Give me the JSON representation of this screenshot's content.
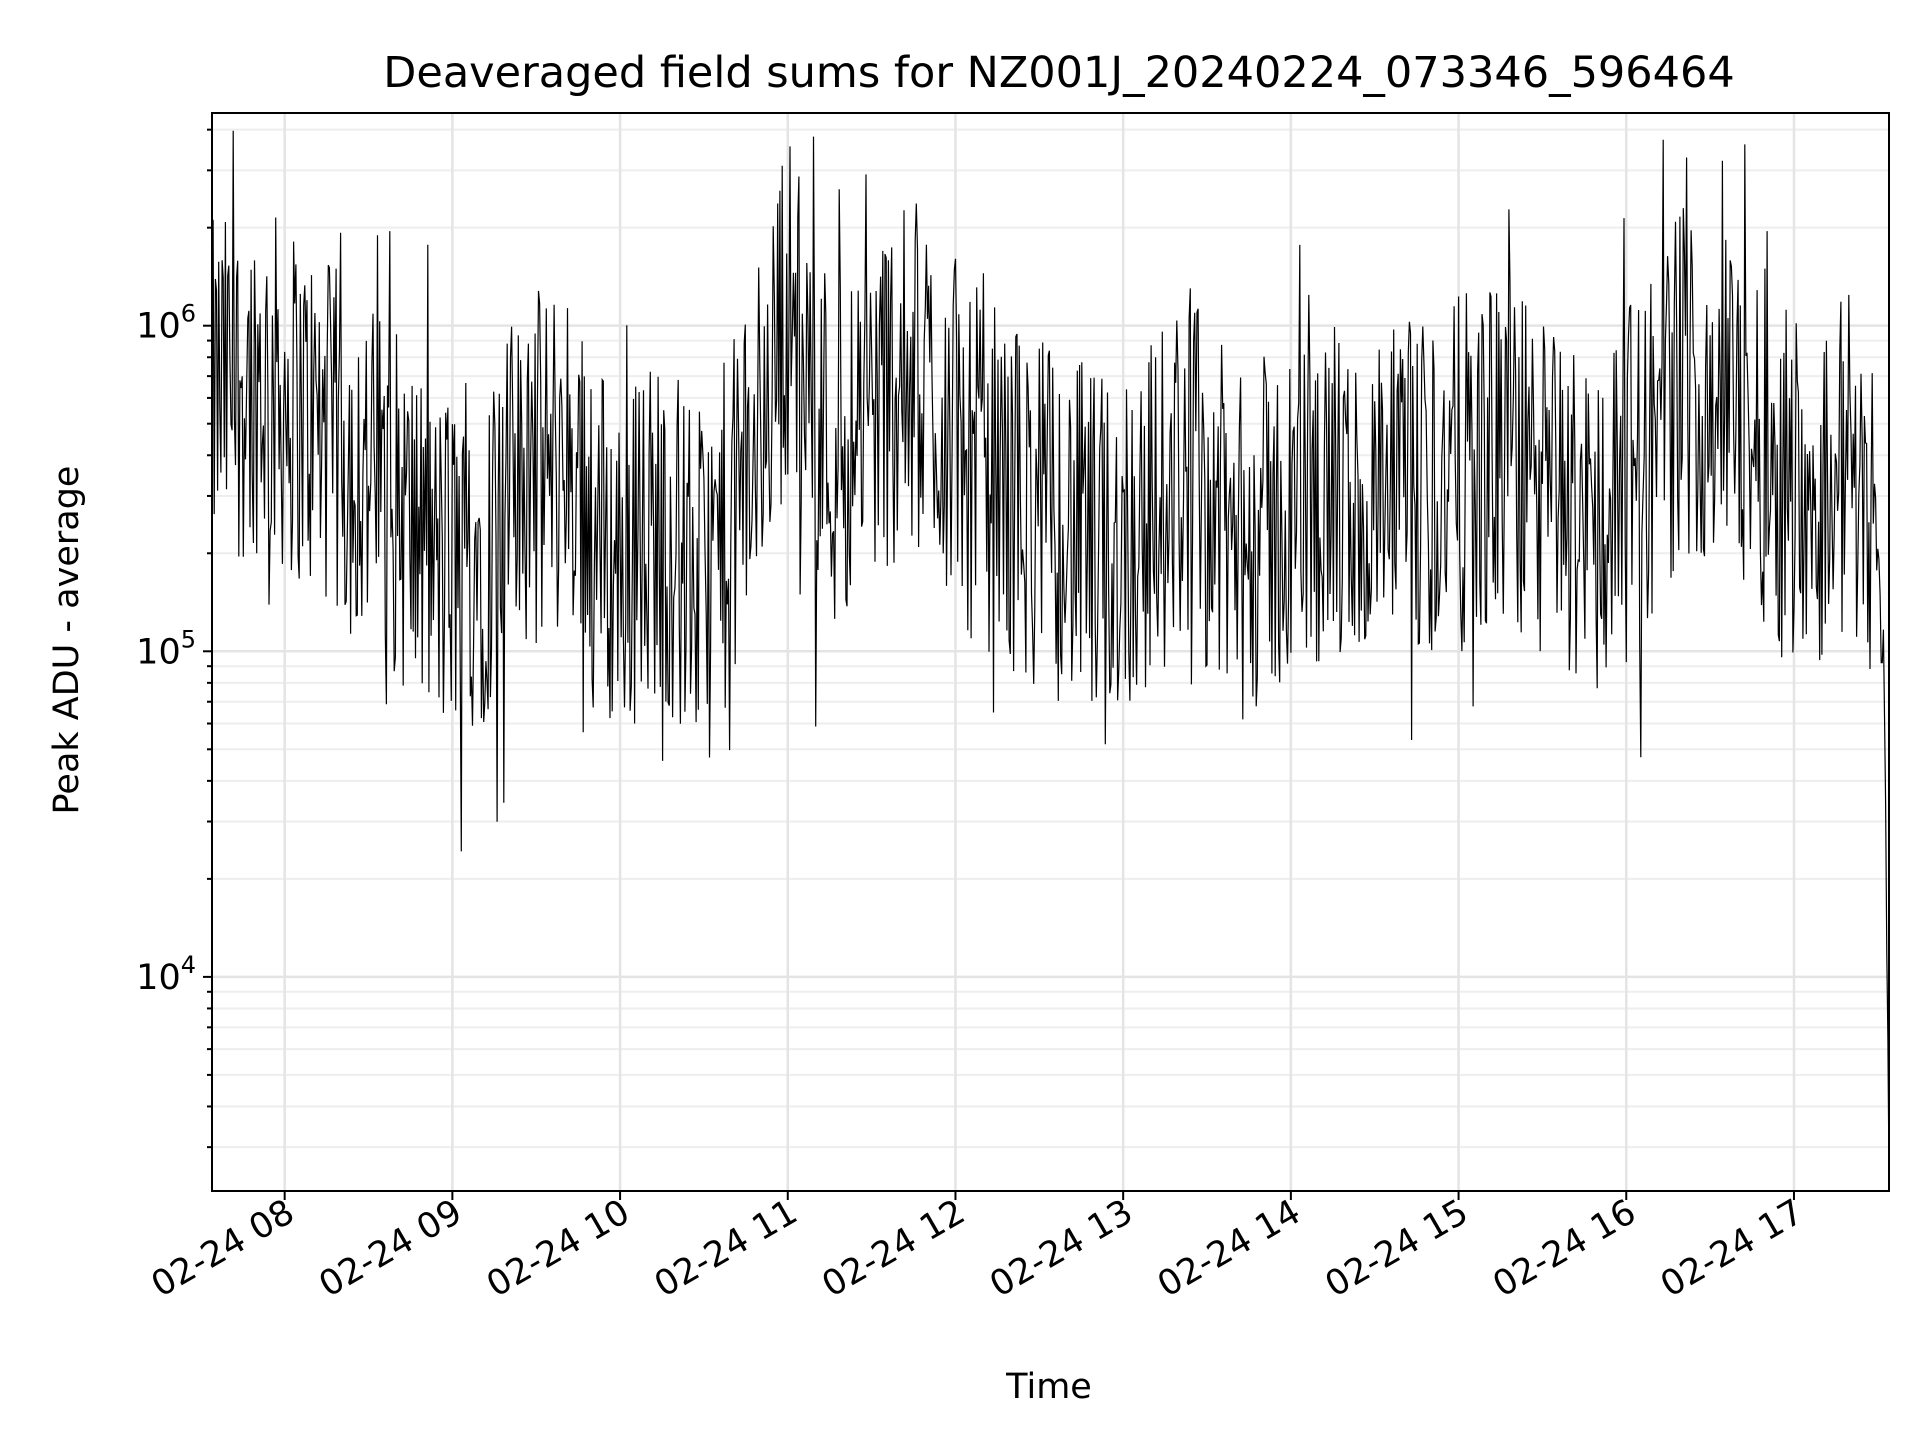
{
  "chart_data": {
    "type": "line",
    "title": "Deaveraged field sums for NZ001J_20240224_073346_596464",
    "xlabel": "Time",
    "ylabel": "Peak ADU - average",
    "yscale": "log",
    "ylim": [
      2200,
      4500000
    ],
    "xlim": [
      "2024-02-24 07:34",
      "2024-02-24 17:34"
    ],
    "grid": "both",
    "line_color": "#000000",
    "x_tick_labels": [
      "02-24 08",
      "02-24 09",
      "02-24 10",
      "02-24 11",
      "02-24 12",
      "02-24 13",
      "02-24 14",
      "02-24 15",
      "02-24 16",
      "02-24 17"
    ],
    "x_ticks": [
      "2024-02-24 08:00",
      "2024-02-24 09:00",
      "2024-02-24 10:00",
      "2024-02-24 11:00",
      "2024-02-24 12:00",
      "2024-02-24 13:00",
      "2024-02-24 14:00",
      "2024-02-24 15:00",
      "2024-02-24 16:00",
      "2024-02-24 17:00"
    ],
    "y_ticks": [
      10000,
      100000,
      1000000
    ],
    "y_tick_labels": [
      {
        "base": "10",
        "exp": "4"
      },
      {
        "base": "10",
        "exp": "5"
      },
      {
        "base": "10",
        "exp": "6"
      }
    ],
    "series": [
      {
        "x": [
          "2024-02-24 07:34",
          "2024-02-24 07:50",
          "2024-02-24 08:06",
          "2024-02-24 08:22",
          "2024-02-24 08:38",
          "2024-02-24 08:54",
          "2024-02-24 09:10",
          "2024-02-24 09:26",
          "2024-02-24 09:42",
          "2024-02-24 09:58",
          "2024-02-24 10:14",
          "2024-02-24 10:30",
          "2024-02-24 10:46",
          "2024-02-24 11:00",
          "2024-02-24 11:16",
          "2024-02-24 11:32",
          "2024-02-24 11:48",
          "2024-02-24 12:04",
          "2024-02-24 12:20",
          "2024-02-24 12:36",
          "2024-02-24 12:52",
          "2024-02-24 13:08",
          "2024-02-24 13:24",
          "2024-02-24 13:40",
          "2024-02-24 13:56",
          "2024-02-24 14:12",
          "2024-02-24 14:28",
          "2024-02-24 14:44",
          "2024-02-24 15:00",
          "2024-02-24 15:16",
          "2024-02-24 15:32",
          "2024-02-24 15:48",
          "2024-02-24 16:04",
          "2024-02-24 16:20",
          "2024-02-24 16:36",
          "2024-02-24 16:52",
          "2024-02-24 17:08",
          "2024-02-24 17:20",
          "2024-02-24 17:28",
          "2024-02-24 17:32",
          "2024-02-24 17:34"
        ],
        "values": [
          600000,
          700000,
          550000,
          400000,
          300000,
          180000,
          200000,
          350000,
          400000,
          180000,
          250000,
          150000,
          350000,
          1200000,
          400000,
          600000,
          700000,
          400000,
          300000,
          250000,
          200000,
          250000,
          400000,
          200000,
          250000,
          300000,
          250000,
          300000,
          350000,
          400000,
          300000,
          250000,
          350000,
          700000,
          600000,
          400000,
          300000,
          400000,
          300000,
          100000,
          3000
        ]
      }
    ]
  }
}
